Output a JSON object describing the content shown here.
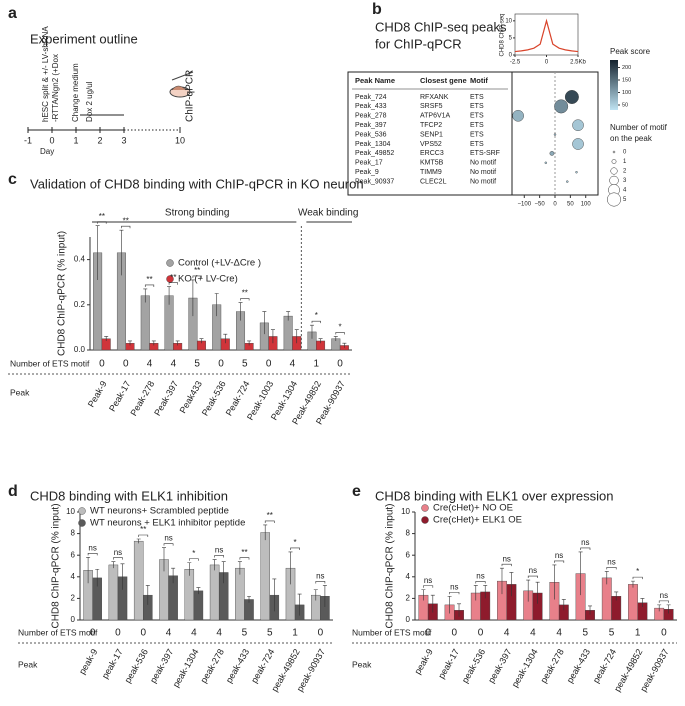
{
  "panel_a": {
    "label": "a",
    "title": "Experiment outline",
    "steps": [
      "hESC split & +/- LV-shRNA",
      "-RTTA/Ngn2 (+Dox",
      "Change medium",
      "Dox 2 ug/ul"
    ],
    "endpoint": "ChIP-qPCR",
    "days": [
      -1,
      0,
      1,
      2,
      3,
      10
    ],
    "day_label": "Day"
  },
  "panel_b": {
    "label": "b",
    "title": [
      "CHD8 ChIP-seq peaks",
      "for ChIP-qPCR"
    ],
    "table": {
      "columns": [
        "Peak Name",
        "Closest gene",
        "Motif"
      ],
      "rows": [
        [
          "Peak_724",
          "RFXANK",
          "ETS"
        ],
        [
          "Peak_433",
          "SRSF5",
          "ETS"
        ],
        [
          "Peak_278",
          "ATP6V1A",
          "ETS"
        ],
        [
          "Peak_397",
          "TFCP2",
          "ETS"
        ],
        [
          "Peak_536",
          "SENP1",
          "ETS"
        ],
        [
          "Peak_1304",
          "VPS52",
          "ETS"
        ],
        [
          "Peak_49852",
          "ERCC3",
          "ETS-SRF"
        ],
        [
          "Peak_17",
          "KMT5B",
          "No motif"
        ],
        [
          "Peak_9",
          "TIMM9",
          "No motif"
        ],
        [
          "Peak_90937",
          "CLEC2L",
          "No motif"
        ]
      ]
    }
  },
  "chart_data": [
    {
      "type": "line",
      "ylabel": "CHD8 ChIP-seq",
      "color": "#d9442b",
      "x": [
        -2.5,
        -2,
        -1.5,
        -1,
        -0.5,
        0,
        0.5,
        1,
        1.5,
        2,
        2.5
      ],
      "values": [
        1,
        1.2,
        1.5,
        2,
        3.2,
        10,
        3.2,
        2,
        1.5,
        1.2,
        1
      ],
      "xlim": [
        -2.5,
        2.5
      ],
      "xticks": [
        -2.5,
        0,
        {
          "value": 2.5,
          "label": "2.5Kb"
        }
      ],
      "ylim": [
        0,
        12
      ],
      "yticks": [
        0,
        5,
        10
      ]
    },
    {
      "type": "scatter",
      "x": [
        55,
        20,
        -120,
        75,
        0,
        75,
        -10,
        -30,
        70,
        40
      ],
      "sizes": [
        5,
        5,
        4,
        4,
        0,
        4,
        1,
        0,
        0,
        0
      ],
      "scores": [
        190,
        120,
        80,
        60,
        70,
        60,
        90,
        60,
        50,
        60
      ],
      "xlim": [
        -140,
        140
      ],
      "xticks": [
        {
          "value": -100,
          "label": "−100"
        },
        {
          "value": -50,
          "label": "−50"
        },
        0,
        50,
        100
      ],
      "colorbar_title": "Peak score",
      "score_lim": [
        30,
        230
      ],
      "colorbar_ticks": [
        50,
        100,
        150,
        200
      ],
      "size_title": [
        "Number of motif",
        "on the peak"
      ],
      "size_ticks": [
        0,
        1,
        2,
        3,
        4,
        5
      ]
    },
    {
      "type": "bar",
      "label": "c",
      "title": "Validation of CHD8 binding with ChIP-qPCR in KO neuron",
      "ylabel": "CHD8 ChIP-qPCR (% input)",
      "categories": [
        "Peak-9",
        "Peak-17",
        "Peak-278",
        "Peak-397",
        "Peak433",
        "Peak-536",
        "Peak-724",
        "Peak-1003",
        "Peak-1304",
        "Peak-49852",
        "Peak-90937"
      ],
      "series": [
        {
          "name": "Control (+LV-ΔCre )",
          "color": "#a3a3a3",
          "values": [
            0.43,
            0.43,
            0.24,
            0.24,
            0.23,
            0.2,
            0.17,
            0.12,
            0.15,
            0.08,
            0.05
          ],
          "errors": [
            0.12,
            0.1,
            0.03,
            0.04,
            0.08,
            0.05,
            0.04,
            0.05,
            0.02,
            0.03,
            0.01
          ]
        },
        {
          "name": "KO (+ LV-Cre)",
          "color": "#d0343a",
          "values": [
            0.05,
            0.03,
            0.03,
            0.03,
            0.04,
            0.05,
            0.03,
            0.06,
            0.06,
            0.04,
            0.02
          ],
          "errors": [
            0.01,
            0.01,
            0.01,
            0.01,
            0.01,
            0.02,
            0.01,
            0.03,
            0.03,
            0.01,
            0.01
          ]
        }
      ],
      "significance": [
        "**",
        "**",
        "**",
        "**",
        "**",
        null,
        "**",
        null,
        null,
        "*",
        "*"
      ],
      "groups": [
        "Strong binding",
        "Weak binding"
      ],
      "motif_label": "Number of ETS motif",
      "motifs": [
        0,
        0,
        4,
        4,
        5,
        0,
        5,
        0,
        4,
        1,
        0
      ],
      "x_label": "Peak",
      "ylim": [
        0,
        0.5
      ],
      "yticks": [
        {
          "value": 0,
          "label": "0.0"
        },
        0.2,
        0.4
      ]
    },
    {
      "type": "bar",
      "label": "d",
      "title": "CHD8 binding with ELK1 inhibition",
      "ylabel": "CHD8 ChIP-qPCR (% input)",
      "categories": [
        "peak-9",
        "peak-17",
        "peak-536",
        "peak-397",
        "peak-1304",
        "peak-278",
        "peak-433",
        "peak-724",
        "peak-49852",
        "peak-90937"
      ],
      "series": [
        {
          "name": "WT neurons+ Scrambled peptide",
          "color": "#bdbdbd",
          "values": [
            4.6,
            5.1,
            7.3,
            5.6,
            4.7,
            5.1,
            4.8,
            8.1,
            4.8,
            2.3
          ],
          "errors": [
            1.2,
            0.3,
            0.2,
            1.1,
            0.6,
            0.5,
            0.6,
            0.7,
            1.5,
            0.5
          ]
        },
        {
          "name": "WT neurons + ELK1 inhibitor peptide",
          "color": "#5a5a5a",
          "values": [
            3.9,
            4.0,
            2.3,
            4.1,
            2.7,
            4.4,
            1.9,
            2.3,
            1.4,
            2.2
          ],
          "errors": [
            0.8,
            1.2,
            0.9,
            0.7,
            0.3,
            1.0,
            0.3,
            1.5,
            1.0,
            1.0
          ]
        }
      ],
      "significance": [
        "ns",
        "ns",
        "**",
        "ns",
        "*",
        "ns",
        "**",
        "**",
        "*",
        "ns"
      ],
      "motif_label": "Number of ETS motif",
      "motifs": [
        0,
        0,
        0,
        4,
        4,
        4,
        5,
        5,
        1,
        0
      ],
      "x_label": "Peak",
      "ylim": [
        0,
        10
      ],
      "yticks": [
        0,
        2,
        4,
        6,
        8,
        10
      ]
    },
    {
      "type": "bar",
      "label": "e",
      "title": "CHD8 binding with ELK1 over expression",
      "ylabel": "CHD8 ChIP-qPCR (% input)",
      "categories": [
        "peak-9",
        "peak-17",
        "peak-536",
        "peak-397",
        "peak-1304",
        "peak-278",
        "peak-433",
        "peak-724",
        "peak-49852",
        "peak-90937"
      ],
      "series": [
        {
          "name": "Cre(cHet)+ NO OE",
          "color": "#e8808a",
          "values": [
            2.3,
            1.4,
            2.5,
            3.6,
            2.7,
            3.5,
            4.3,
            3.9,
            3.3,
            1.1
          ],
          "errors": [
            0.5,
            0.8,
            0.7,
            1.2,
            1.0,
            1.6,
            2.0,
            0.6,
            0.3,
            0.3
          ]
        },
        {
          "name": "Cre(cHet)+ ELK1 OE",
          "color": "#8e1b2c",
          "values": [
            1.5,
            0.9,
            2.6,
            3.3,
            2.5,
            1.4,
            0.9,
            2.2,
            1.6,
            1.0
          ],
          "errors": [
            0.8,
            0.6,
            0.6,
            1.1,
            1.0,
            0.5,
            0.4,
            0.4,
            0.4,
            0.4
          ]
        }
      ],
      "significance": [
        "ns",
        "ns",
        "ns",
        "ns",
        "ns",
        "ns",
        "ns",
        "ns",
        "*",
        "ns"
      ],
      "motif_label": "Number of ETS motif",
      "motifs": [
        0,
        0,
        0,
        4,
        4,
        4,
        5,
        5,
        1,
        0
      ],
      "x_label": "Peak",
      "ylim": [
        0,
        10
      ],
      "yticks": [
        0,
        2,
        4,
        6,
        8,
        10
      ]
    }
  ]
}
